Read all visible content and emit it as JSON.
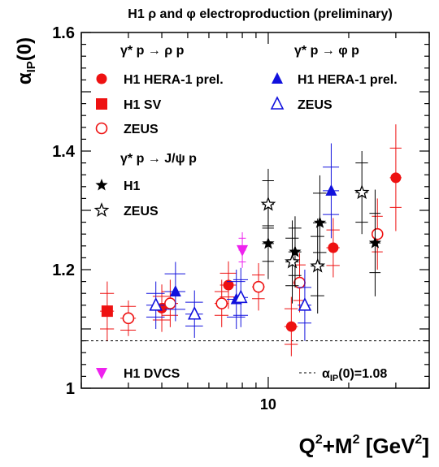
{
  "chart_data": {
    "type": "scatter",
    "title": "H1 ρ and φ electroproduction (preliminary)",
    "xlabel_main": "Q",
    "xlabel_sup1": "2",
    "xlabel_mid": "+M",
    "xlabel_sup2": "2",
    "xlabel_unit": " [GeV",
    "xlabel_sup3": "2",
    "xlabel_end": "]",
    "ylabel": "α",
    "ylabel_sub": "IP",
    "ylabel_end": "(0)",
    "x_scale": "log",
    "xlim": [
      2.0,
      40.0
    ],
    "ylim": [
      1.0,
      1.6
    ],
    "x_tick_labels": [
      {
        "value": 10,
        "label": "10"
      }
    ],
    "y_tick_labels": [
      {
        "value": 1.0,
        "label": "1"
      },
      {
        "value": 1.2,
        "label": "1.2"
      },
      {
        "value": 1.4,
        "label": "1.4"
      },
      {
        "value": 1.6,
        "label": "1.6"
      }
    ],
    "reference_line": {
      "y": 1.08,
      "label": "α",
      "label_sub": "IP",
      "label_end": "(0)=1.08"
    },
    "legend_headers": {
      "rho": "γ* p → ρ p",
      "phi": "γ* p → φ p",
      "jpsi": "γ* p → J/ψ p"
    },
    "series": [
      {
        "name": "H1 HERA-1 prel.",
        "group": "rho",
        "marker": "circle-filled",
        "color": "#ee1111",
        "points": [
          {
            "x": 4.0,
            "y": 1.135,
            "err": 0.02,
            "sys": 0.04,
            "xerr": 0.3
          },
          {
            "x": 7.1,
            "y": 1.174,
            "err": 0.02,
            "sys": 0.04,
            "xerr": 0.5
          },
          {
            "x": 12.2,
            "y": 1.104,
            "err": 0.03,
            "sys": 0.05,
            "xerr": 0.7
          },
          {
            "x": 17.5,
            "y": 1.237,
            "err": 0.03,
            "sys": 0.05,
            "xerr": 1.0
          },
          {
            "x": 30.0,
            "y": 1.355,
            "err": 0.05,
            "sys": 0.09,
            "xerr": 1.5
          }
        ]
      },
      {
        "name": "H1 SV",
        "group": "rho",
        "marker": "square-filled",
        "color": "#ee1111",
        "points": [
          {
            "x": 2.5,
            "y": 1.13,
            "err": 0.03,
            "sys": 0.05,
            "xerr": 0.15
          }
        ]
      },
      {
        "name": "ZEUS",
        "group": "rho",
        "marker": "circle-open",
        "color": "#ee1111",
        "points": [
          {
            "x": 3.0,
            "y": 1.118,
            "err": 0.02,
            "sys": 0.03,
            "xerr": 0.2
          },
          {
            "x": 4.3,
            "y": 1.143,
            "err": 0.02,
            "sys": 0.04,
            "xerr": 0.3
          },
          {
            "x": 6.7,
            "y": 1.143,
            "err": 0.02,
            "sys": 0.04,
            "xerr": 0.4
          },
          {
            "x": 9.2,
            "y": 1.171,
            "err": 0.02,
            "sys": 0.04,
            "xerr": 0.5
          },
          {
            "x": 13.1,
            "y": 1.178,
            "err": 0.03,
            "sys": 0.05,
            "xerr": 0.7
          },
          {
            "x": 25.6,
            "y": 1.26,
            "err": 0.03,
            "sys": 0.06,
            "xerr": 1.2
          }
        ]
      },
      {
        "name": "H1 HERA-1 prel.",
        "group": "phi",
        "marker": "triangle-up-filled",
        "color": "#1111dd",
        "points": [
          {
            "x": 4.5,
            "y": 1.163,
            "err": 0.03,
            "sys": 0.05,
            "xerr": 0.4
          },
          {
            "x": 7.6,
            "y": 1.15,
            "err": 0.03,
            "sys": 0.05,
            "xerr": 0.6
          },
          {
            "x": 17.2,
            "y": 1.333,
            "err": 0.04,
            "sys": 0.08,
            "xerr": 1.2
          }
        ]
      },
      {
        "name": "ZEUS",
        "group": "phi",
        "marker": "triangle-up-open",
        "color": "#1111dd",
        "points": [
          {
            "x": 3.8,
            "y": 1.14,
            "err": 0.02,
            "sys": 0.04,
            "xerr": 0.3
          },
          {
            "x": 5.3,
            "y": 1.125,
            "err": 0.02,
            "sys": 0.04,
            "xerr": 0.4
          },
          {
            "x": 7.9,
            "y": 1.153,
            "err": 0.03,
            "sys": 0.05,
            "xerr": 0.5
          },
          {
            "x": 13.7,
            "y": 1.14,
            "err": 0.03,
            "sys": 0.06,
            "xerr": 0.8
          }
        ]
      },
      {
        "name": "H1",
        "group": "jpsi",
        "marker": "star-filled",
        "color": "#000000",
        "points": [
          {
            "x": 10.0,
            "y": 1.244,
            "err": 0.03,
            "sys": 0.06,
            "xerr": 0.5
          },
          {
            "x": 12.6,
            "y": 1.23,
            "err": 0.04,
            "sys": 0.06,
            "xerr": 0.7
          },
          {
            "x": 15.6,
            "y": 1.279,
            "err": 0.05,
            "sys": 0.08,
            "xerr": 0.9
          },
          {
            "x": 25.1,
            "y": 1.245,
            "err": 0.05,
            "sys": 0.09,
            "xerr": 1.2
          }
        ]
      },
      {
        "name": "ZEUS",
        "group": "jpsi",
        "marker": "star-open",
        "color": "#000000",
        "points": [
          {
            "x": 10.0,
            "y": 1.31,
            "err": 0.04,
            "sys": 0.06,
            "xerr": 0.5
          },
          {
            "x": 12.3,
            "y": 1.213,
            "err": 0.04,
            "sys": 0.07,
            "xerr": 0.7
          },
          {
            "x": 15.3,
            "y": 1.206,
            "err": 0.05,
            "sys": 0.08,
            "xerr": 0.9
          },
          {
            "x": 22.4,
            "y": 1.33,
            "err": 0.05,
            "sys": 0.07,
            "xerr": 1.2
          }
        ]
      },
      {
        "name": "H1 DVCS",
        "group": "dvcs",
        "marker": "triangle-down-filled",
        "color": "#ee22ee",
        "points": [
          {
            "x": 8.0,
            "y": 1.233,
            "err": 0.02,
            "sys": 0.03,
            "xerr": 0.25
          }
        ]
      }
    ]
  }
}
